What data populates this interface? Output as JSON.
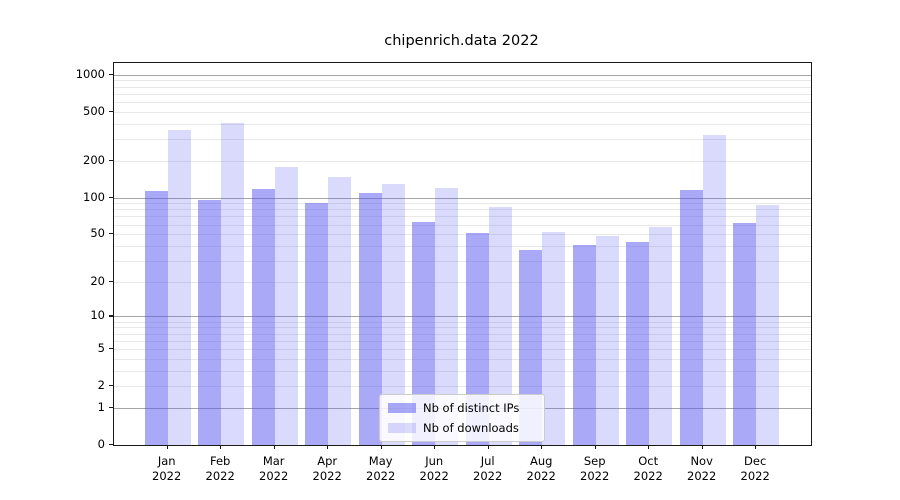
{
  "title": "chipenrich.data 2022",
  "colors": {
    "bar_ips": "rgba(86,86,240,0.51)",
    "bar_downloads": "rgba(86,86,240,0.22)",
    "bar_ips_flat": "#a9a9f5",
    "bar_downloads_flat": "#dadaf9",
    "grid_major": "#a6a6a6",
    "grid_minor": "#e8e8e8",
    "axis": "#1a1a1a",
    "text": "#000000"
  },
  "legend": {
    "items": [
      {
        "label": "Nb of distinct IPs",
        "color_key": "bar_ips"
      },
      {
        "label": "Nb of downloads",
        "color_key": "bar_downloads"
      }
    ],
    "position": "lower center"
  },
  "chart_data": {
    "type": "bar",
    "title": "chipenrich.data 2022",
    "scale": "log10(1+y)",
    "categories": [
      "Jan",
      "Feb",
      "Mar",
      "Apr",
      "May",
      "Jun",
      "Jul",
      "Aug",
      "Sep",
      "Oct",
      "Nov",
      "Dec"
    ],
    "year": "2022",
    "series": [
      {
        "name": "Nb of distinct IPs",
        "values": [
          114,
          96,
          117,
          90,
          108,
          63,
          51,
          37,
          41,
          43,
          115,
          62
        ]
      },
      {
        "name": "Nb of downloads",
        "values": [
          355,
          408,
          178,
          148,
          130,
          120,
          83,
          52,
          48,
          57,
          324,
          87
        ]
      }
    ],
    "y_ticks": [
      0,
      1,
      2,
      5,
      10,
      20,
      50,
      100,
      200,
      500,
      1000
    ],
    "ylim": [
      0,
      1240
    ],
    "xlabel": "",
    "ylabel": "",
    "grid": true,
    "legend_position": "lower center"
  }
}
